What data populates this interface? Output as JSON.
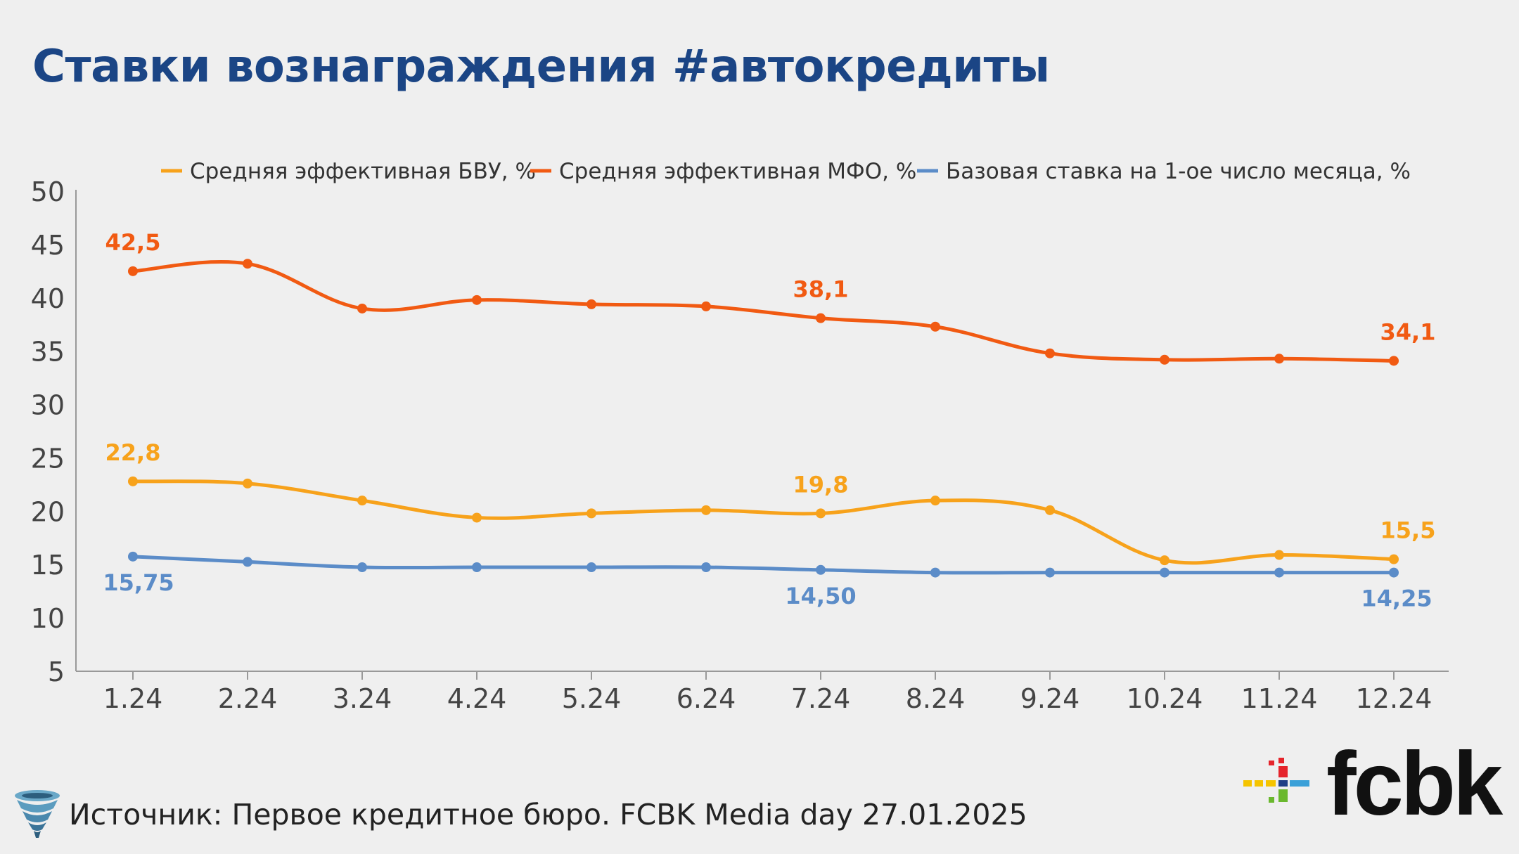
{
  "page": {
    "title": "Ставки вознаграждения #автокредиты",
    "source": "Источник: Первое кредитное бюро. FCBK Media day 27.01.2025",
    "logo_text": "fcbk",
    "source_icon": "tornado-icon",
    "logo_icon": "fcbk-cross-icon"
  },
  "chart_data": {
    "type": "line",
    "title": "",
    "xlabel": "",
    "ylabel": "",
    "categories": [
      "1.24",
      "2.24",
      "3.24",
      "4.24",
      "5.24",
      "6.24",
      "7.24",
      "8.24",
      "9.24",
      "10.24",
      "11.24",
      "12.24"
    ],
    "ylim": [
      5,
      50
    ],
    "yticks": [
      5,
      10,
      15,
      20,
      25,
      30,
      35,
      40,
      45,
      50
    ],
    "grid": false,
    "legend_position": "top",
    "series": [
      {
        "name": "Средняя эффективная БВУ, %",
        "color": "#f7a21b",
        "values": [
          22.8,
          22.6,
          21.0,
          19.4,
          19.8,
          20.1,
          19.8,
          21.0,
          20.1,
          15.4,
          15.9,
          15.5
        ],
        "labels": [
          {
            "index": 0,
            "text": "22,8"
          },
          {
            "index": 6,
            "text": "19,8"
          },
          {
            "index": 11,
            "text": "15,5"
          }
        ]
      },
      {
        "name": "Средняя эффективная МФО, %",
        "color": "#f15a12",
        "values": [
          42.5,
          43.2,
          39.0,
          39.8,
          39.4,
          39.2,
          38.1,
          37.3,
          34.8,
          34.2,
          34.3,
          34.1
        ],
        "labels": [
          {
            "index": 0,
            "text": "42,5"
          },
          {
            "index": 6,
            "text": "38,1"
          },
          {
            "index": 11,
            "text": "34,1"
          }
        ]
      },
      {
        "name": "Базовая ставка на 1-ое число месяца, %",
        "color": "#5b8cc8",
        "values": [
          15.75,
          15.25,
          14.75,
          14.75,
          14.75,
          14.75,
          14.5,
          14.25,
          14.25,
          14.25,
          14.25,
          14.25
        ],
        "labels": [
          {
            "index": 0,
            "text": "15,75"
          },
          {
            "index": 6,
            "text": "14,50"
          },
          {
            "index": 11,
            "text": "14,25"
          }
        ]
      }
    ]
  }
}
